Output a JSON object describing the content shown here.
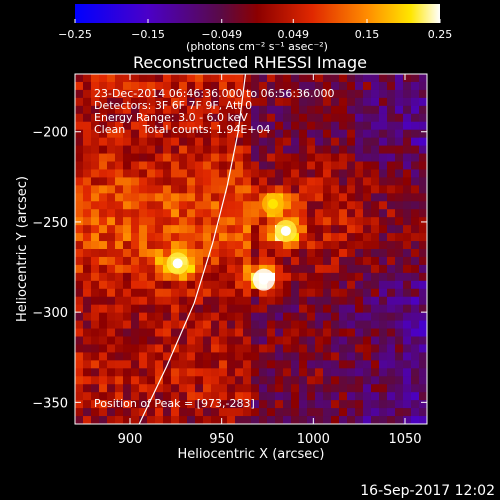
{
  "chart_data": {
    "type": "heatmap",
    "title": "Reconstructed RHESSI Image",
    "xlabel": "Heliocentric X (arcsec)",
    "ylabel": "Heliocentric Y (arcsec)",
    "xlim": [
      870,
      1062
    ],
    "ylim": [
      -362,
      -168
    ],
    "x_ticks": [
      900,
      950,
      1000,
      1050
    ],
    "y_ticks": [
      -200,
      -250,
      -300,
      -350
    ],
    "x_tick_labels": [
      "900",
      "950",
      "1000",
      "1050"
    ],
    "y_tick_labels": [
      "−200",
      "−250",
      "−300",
      "−350"
    ],
    "colorbar": {
      "range": [
        -0.25,
        0.25
      ],
      "ticks": [
        -0.25,
        -0.15,
        -0.049,
        0.049,
        0.15,
        0.25
      ],
      "tick_labels": [
        "−0.25",
        "−0.15",
        "−0.049",
        "0.049",
        "0.15",
        "0.25"
      ],
      "unit_label": "(photons cm⁻² s⁻¹ asec⁻²)",
      "colormap": "blue-purple-red-orange-yellow-white"
    },
    "annotations": [
      "23-Dec-2014 06:46:36.000 to 06:56:36.000",
      "Detectors: 3F 6F 7F 9F, Att 0",
      "Energy Range: 3.0 - 6.0 keV",
      "Clean     Total counts: 1.94E+04"
    ],
    "peak_label": "Position of Peak = [973,-283]",
    "sources": [
      {
        "x": 926,
        "y": -273,
        "intensity": 0.22
      },
      {
        "x": 973,
        "y": -282,
        "intensity": 0.25
      },
      {
        "x": 985,
        "y": -255,
        "intensity": 0.22
      },
      {
        "x": 978,
        "y": -240,
        "intensity": 0.18
      }
    ],
    "limb_curve": [
      [
        905,
        -362
      ],
      [
        920,
        -330
      ],
      [
        935,
        -295
      ],
      [
        945,
        -262
      ],
      [
        953,
        -230
      ],
      [
        959,
        -200
      ],
      [
        963,
        -168
      ]
    ],
    "footer_timestamp": "16-Sep-2017 12:02"
  }
}
